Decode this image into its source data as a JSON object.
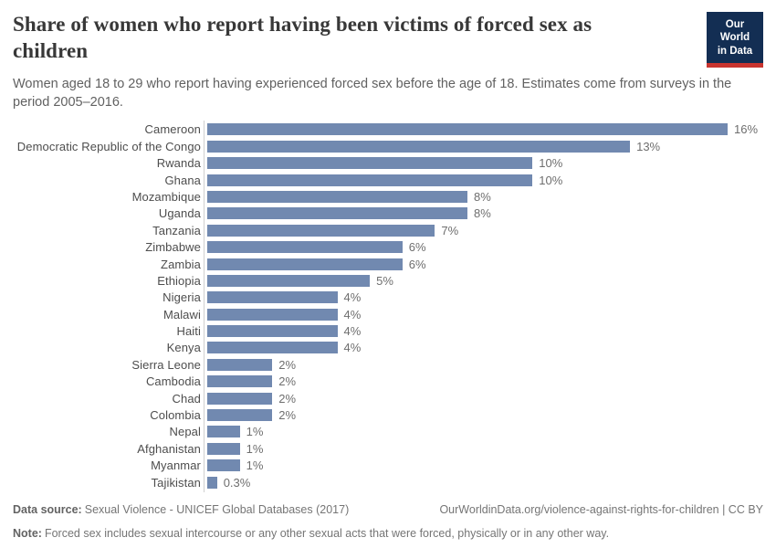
{
  "header": {
    "title": "Share of women who report having been victims of forced sex as children",
    "subtitle": "Women aged 18 to 29 who report having experienced forced sex before the age of 18. Estimates come from surveys in the period 2005–2016.",
    "logo": {
      "line1": "Our World",
      "line2": "in Data"
    }
  },
  "chart_data": {
    "type": "bar",
    "orientation": "horizontal",
    "title": "Share of women who report having been victims of forced sex as children",
    "categories": [
      "Cameroon",
      "Democratic Republic of the Congo",
      "Rwanda",
      "Ghana",
      "Mozambique",
      "Uganda",
      "Tanzania",
      "Zimbabwe",
      "Zambia",
      "Ethiopia",
      "Nigeria",
      "Malawi",
      "Haiti",
      "Kenya",
      "Sierra Leone",
      "Cambodia",
      "Chad",
      "Colombia",
      "Nepal",
      "Afghanistan",
      "Myanmar",
      "Tajikistan"
    ],
    "values": [
      16,
      13,
      10,
      10,
      8,
      8,
      7,
      6,
      6,
      5,
      4,
      4,
      4,
      4,
      2,
      2,
      2,
      2,
      1,
      1,
      1,
      0.3
    ],
    "value_labels": [
      "16%",
      "13%",
      "10%",
      "10%",
      "8%",
      "8%",
      "7%",
      "6%",
      "6%",
      "5%",
      "4%",
      "4%",
      "4%",
      "4%",
      "2%",
      "2%",
      "2%",
      "2%",
      "1%",
      "1%",
      "1%",
      "0.3%"
    ],
    "unit": "%",
    "xlim": [
      0,
      16
    ],
    "grid": false,
    "legend": false,
    "bar_color": "#7189b0"
  },
  "footer": {
    "data_source_label": "Data source:",
    "data_source_text": "Sexual Violence - UNICEF Global Databases (2017)",
    "link_text": "OurWorldinData.org/violence-against-rights-for-children | CC BY",
    "note_label": "Note:",
    "note_text": "Forced sex includes sexual intercourse or any other sexual acts that were forced, physically or in any other way."
  },
  "colors": {
    "bar": "#7189b0",
    "axis_line": "#cfcfcf",
    "brand_navy": "#132e53",
    "brand_red": "#c9342f"
  }
}
